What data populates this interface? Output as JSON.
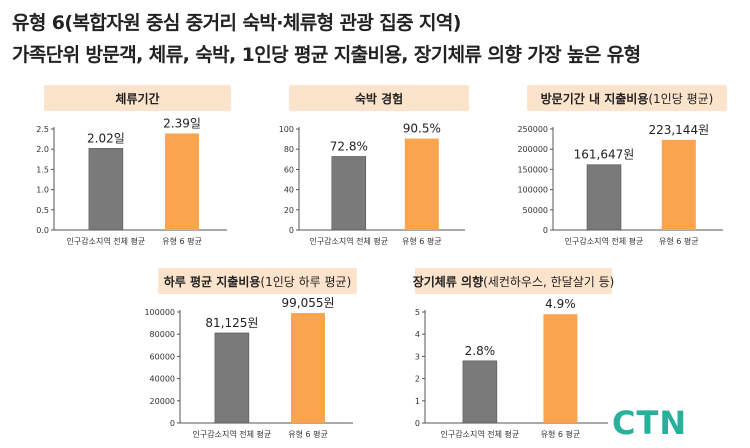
{
  "page": {
    "title_line1": "유형 6(복합자원 중심 중거리 숙박·체류형 관광 집중 지역)",
    "title_line2": "가족단위 방문객, 체류, 숙박, 1인당 평균 지출비용, 장기체류 의향 가장 높은 유형",
    "logo": "CTN"
  },
  "colors": {
    "gray": "#7a7a7a",
    "orange": "#f9a550",
    "header_bg": "#fce3cc"
  },
  "chart_data": [
    {
      "type": "bar",
      "title": "체류기간",
      "title_sub": "",
      "categories": [
        "인구감소지역 전체 평균",
        "유형 6 평균"
      ],
      "values": [
        2.02,
        2.39
      ],
      "value_labels": [
        "2.02일",
        "2.39일"
      ],
      "yticks": [
        "0.0",
        "0.5",
        "1.0",
        "1.5",
        "2.0",
        "2.5"
      ],
      "ylim": [
        0,
        2.5
      ]
    },
    {
      "type": "bar",
      "title": "숙박 경험",
      "title_sub": "",
      "categories": [
        "인구감소지역 전체 평균",
        "유형 6 평균"
      ],
      "values": [
        72.8,
        90.5
      ],
      "value_labels": [
        "72.8%",
        "90.5%"
      ],
      "yticks": [
        "0",
        "20",
        "40",
        "60",
        "80",
        "100"
      ],
      "ylim": [
        0,
        100
      ]
    },
    {
      "type": "bar",
      "title": "방문기간 내 지출비용",
      "title_sub": "(1인당 평균)",
      "categories": [
        "인구감소지역 전체 평균",
        "유형 6 평균"
      ],
      "values": [
        161647,
        223144
      ],
      "value_labels": [
        "161,647원",
        "223,144원"
      ],
      "yticks": [
        "0",
        "50000",
        "100000",
        "150000",
        "200000",
        "250000"
      ],
      "ylim": [
        0,
        250000
      ]
    },
    {
      "type": "bar",
      "title": "하루 평균 지출비용",
      "title_sub": "(1인당 하루 평균)",
      "categories": [
        "인구감소지역 전체 평균",
        "유형 6 평균"
      ],
      "values": [
        81125,
        99055
      ],
      "value_labels": [
        "81,125원",
        "99,055원"
      ],
      "yticks": [
        "0",
        "20000",
        "40000",
        "60000",
        "80000",
        "100000"
      ],
      "ylim": [
        0,
        100000
      ]
    },
    {
      "type": "bar",
      "title": "장기체류 의향",
      "title_sub": "(세컨하우스, 한달살기 등)",
      "categories": [
        "인구감소지역 전체 평균",
        "유형 6 평균"
      ],
      "values": [
        2.8,
        4.9
      ],
      "value_labels": [
        "2.8%",
        "4.9%"
      ],
      "yticks": [
        "0",
        "1",
        "2",
        "3",
        "4",
        "5"
      ],
      "ylim": [
        0,
        5
      ]
    }
  ]
}
